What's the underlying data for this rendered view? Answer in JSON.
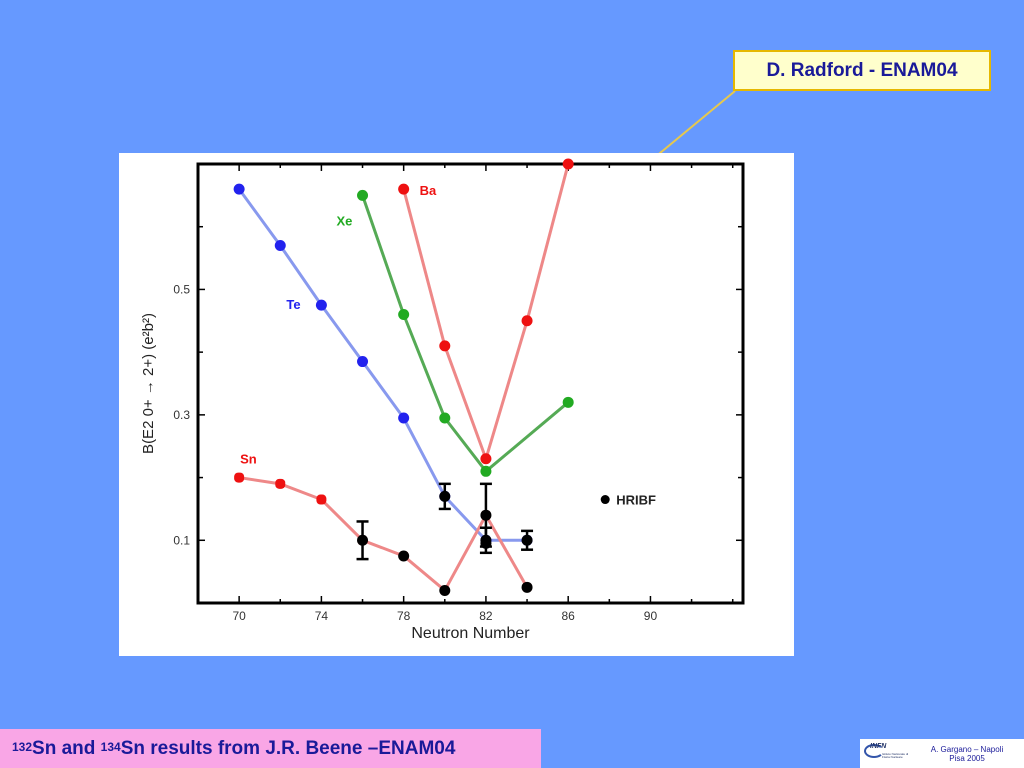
{
  "callout": {
    "text": "D. Radford - ENAM04"
  },
  "caption": {
    "sup1": "132",
    "part1": "Sn and ",
    "sup2": "134",
    "part2": "Sn results from J.R. Beene –ENAM04"
  },
  "footer": {
    "logo_text": "INFN",
    "logo_sub": "Istituto Nazionale di Fisica Nucleare",
    "line1": "A. Gargano – Napoli",
    "line2": "Pisa  2005"
  },
  "colors": {
    "background": "#6699ff",
    "Te": "#2222ee",
    "Te_line": "#8899ee",
    "Xe": "#22aa22",
    "Xe_line": "#55aa55",
    "Ba": "#ee1111",
    "Ba_line": "#ee8888",
    "Sn": "#ee1111",
    "Sn_line": "#ee8888",
    "HRIBF": "#000000"
  },
  "chart_data": {
    "type": "scatter",
    "xlabel": "Neutron Number",
    "ylabel": "B(E2 0+ → 2+) (e²b²)",
    "xlim": [
      68,
      94.5
    ],
    "ylim": [
      0,
      0.7
    ],
    "x_ticks": [
      70,
      74,
      78,
      82,
      86,
      90
    ],
    "y_ticks": [
      0.1,
      0.3,
      0.5
    ],
    "x_tick_labels": [
      "70",
      "74",
      "78",
      "82",
      "86",
      "90"
    ],
    "y_tick_labels": [
      "0.1",
      "0.3",
      "0.5"
    ],
    "grid": false,
    "legend_position": "right",
    "series": [
      {
        "name": "Te",
        "points": [
          [
            70,
            0.66
          ],
          [
            72,
            0.57
          ],
          [
            74,
            0.475
          ],
          [
            76,
            0.385
          ],
          [
            78,
            0.295
          ],
          [
            80,
            0.17
          ],
          [
            82,
            0.1
          ],
          [
            84,
            0.1
          ]
        ]
      },
      {
        "name": "Xe",
        "points": [
          [
            76,
            0.65
          ],
          [
            78,
            0.46
          ],
          [
            80,
            0.295
          ],
          [
            82,
            0.21
          ],
          [
            86,
            0.32
          ]
        ]
      },
      {
        "name": "Ba",
        "points": [
          [
            78,
            0.66
          ],
          [
            80,
            0.41
          ],
          [
            82,
            0.23
          ],
          [
            84,
            0.45
          ],
          [
            86,
            0.7
          ]
        ]
      },
      {
        "name": "Sn",
        "points": [
          [
            70,
            0.2
          ],
          [
            72,
            0.19
          ],
          [
            74,
            0.165
          ],
          [
            76,
            0.1
          ],
          [
            78,
            0.075
          ],
          [
            80,
            0.02
          ],
          [
            82,
            0.14
          ],
          [
            84,
            0.025
          ]
        ]
      },
      {
        "name": "HRIBF",
        "points": [
          [
            76,
            0.1
          ],
          [
            78,
            0.075
          ],
          [
            80,
            0.02
          ],
          [
            80,
            0.17
          ],
          [
            82,
            0.14
          ],
          [
            82,
            0.1
          ],
          [
            82,
            0.095
          ],
          [
            84,
            0.025
          ],
          [
            84,
            0.1
          ]
        ],
        "errors": [
          0.03,
          0,
          0,
          0.02,
          0.05,
          0.02,
          0,
          0,
          0.015
        ]
      }
    ]
  }
}
